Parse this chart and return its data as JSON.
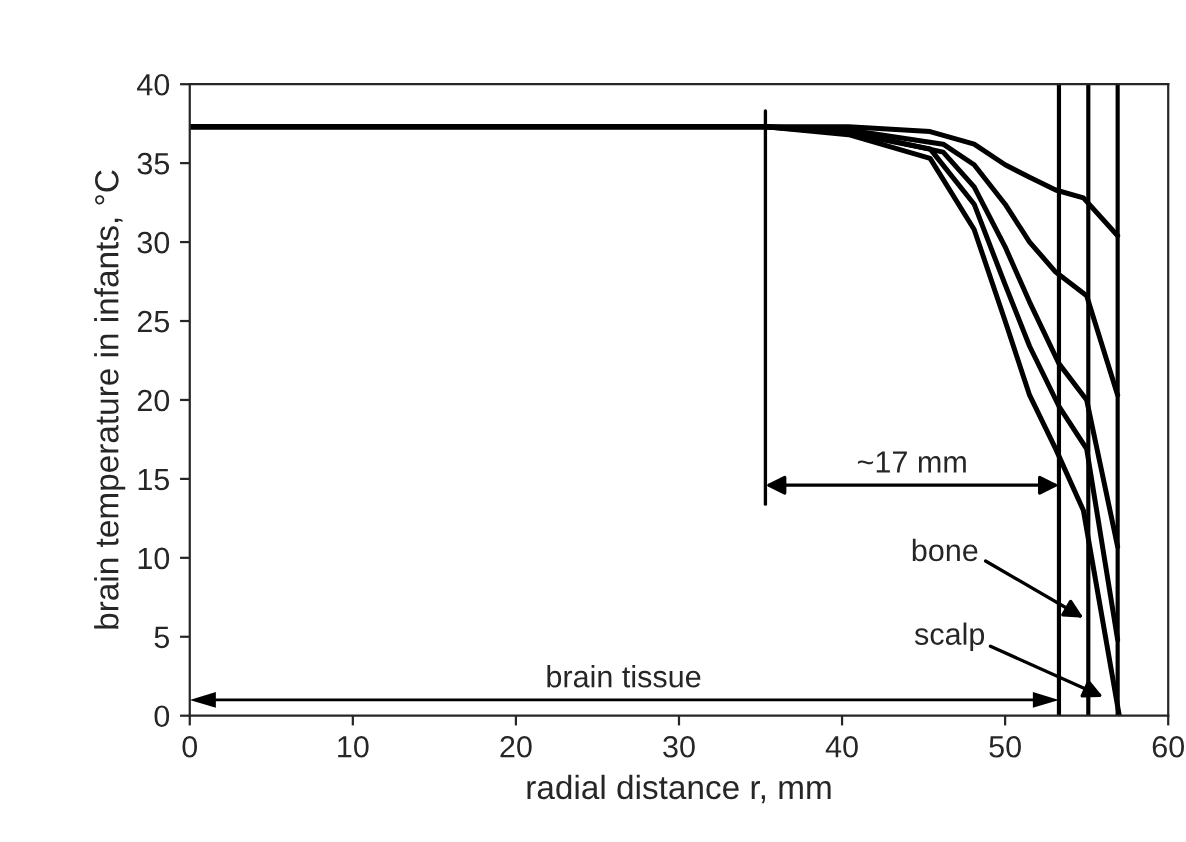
{
  "chart_data": {
    "type": "line",
    "xlabel": "radial distance r, mm",
    "ylabel": "brain temperature in infants, °C",
    "xlim": [
      0,
      60
    ],
    "xticks": [
      0,
      10,
      20,
      30,
      40,
      50,
      60
    ],
    "ylim": [
      0,
      40
    ],
    "yticks": [
      0,
      5,
      10,
      15,
      20,
      25,
      30,
      35,
      40
    ],
    "grid": false,
    "legend": false,
    "marker": "none",
    "line_style": "solid",
    "series": [
      {
        "color": "#000000",
        "x": [
          0,
          30,
          35.3,
          40.4,
          45.4,
          48.1,
          50,
          51.5,
          53.1,
          54.8,
          56.9
        ],
        "values": [
          37.3,
          37.3,
          37.3,
          37.3,
          37.0,
          36.2,
          34.9,
          34.1,
          33.3,
          32.8,
          30.4
        ]
      },
      {
        "color": "#000000",
        "x": [
          0,
          30,
          35.3,
          40.4,
          46.2,
          48.1,
          50,
          51.5,
          53.1,
          55.0,
          56.9
        ],
        "values": [
          37.3,
          37.3,
          37.3,
          37.1,
          36.2,
          34.9,
          32.4,
          30.0,
          28.1,
          26.6,
          20.3
        ]
      },
      {
        "color": "#000000",
        "x": [
          0,
          30,
          35.3,
          40.4,
          46.2,
          48.1,
          50,
          51.5,
          53.3,
          55.0,
          56.9
        ],
        "values": [
          37.3,
          37.3,
          37.3,
          37.0,
          35.7,
          33.5,
          29.7,
          26.2,
          22.3,
          20.0,
          10.7
        ]
      },
      {
        "color": "#000000",
        "x": [
          0,
          30,
          35.3,
          40.4,
          45.4,
          48.1,
          50,
          51.5,
          53.3,
          55.0,
          56.9
        ],
        "values": [
          37.3,
          37.3,
          37.3,
          36.9,
          35.9,
          32.4,
          27.3,
          23.4,
          19.6,
          16.9,
          4.8
        ]
      },
      {
        "color": "#000000",
        "x": [
          0,
          30,
          35.3,
          40.4,
          45.4,
          48.1,
          50,
          51.5,
          53.1,
          54.8,
          57.0
        ],
        "values": [
          37.3,
          37.3,
          37.3,
          36.8,
          35.3,
          30.8,
          25.0,
          20.3,
          16.9,
          13.0,
          0
        ]
      },
      {
        "type": "line",
        "color": "#000000",
        "x": [
          35.3,
          35.3
        ],
        "values": [
          13.4,
          38.3
        ]
      }
    ],
    "ref_lines": [
      {
        "axis": "x",
        "value": 53.3
      },
      {
        "axis": "x",
        "value": 55.1
      },
      {
        "axis": "x",
        "value": 56.9
      }
    ],
    "annotations": [
      "~17 mm",
      "bone",
      "scalp",
      "brain tissue"
    ]
  }
}
